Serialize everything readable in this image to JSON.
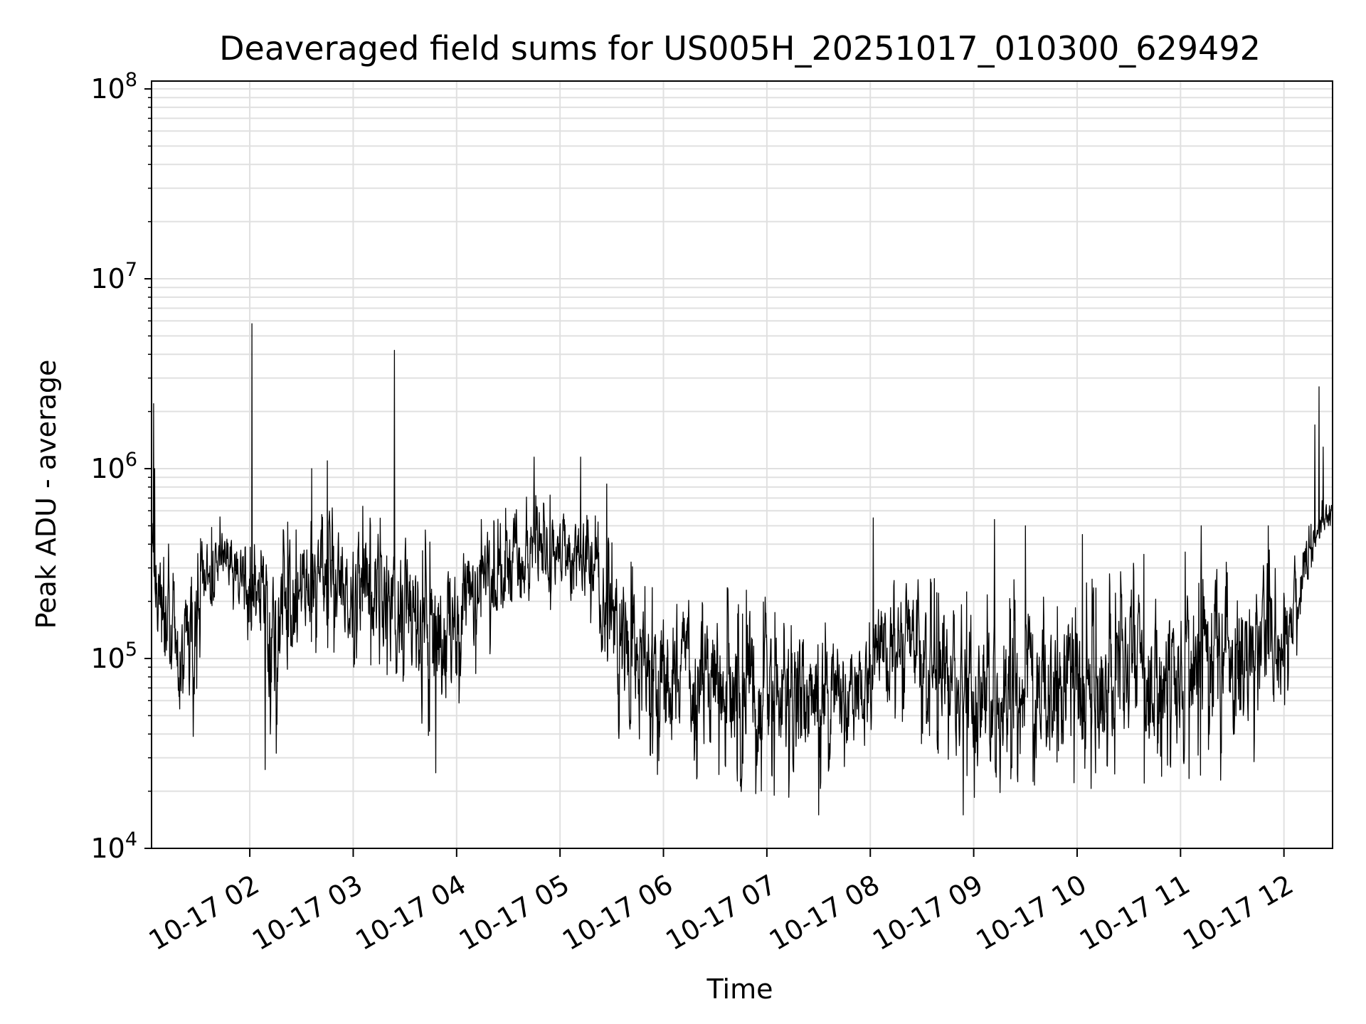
{
  "chart_data": {
    "type": "line",
    "title": "Deaveraged field sums for US005H_20251017_010300_629492",
    "xlabel": "Time",
    "ylabel": "Peak ADU - average",
    "yscale": "log",
    "ylim": [
      10000,
      110000000
    ],
    "xlim_hours": [
      1.05,
      12.47
    ],
    "grid": true,
    "line_color": "#000000",
    "grid_color": "#e0e0e0",
    "xticks": [
      {
        "hour": 2,
        "label": "10-17 02"
      },
      {
        "hour": 3,
        "label": "10-17 03"
      },
      {
        "hour": 4,
        "label": "10-17 04"
      },
      {
        "hour": 5,
        "label": "10-17 05"
      },
      {
        "hour": 6,
        "label": "10-17 06"
      },
      {
        "hour": 7,
        "label": "10-17 07"
      },
      {
        "hour": 8,
        "label": "10-17 08"
      },
      {
        "hour": 9,
        "label": "10-17 09"
      },
      {
        "hour": 10,
        "label": "10-17 10"
      },
      {
        "hour": 11,
        "label": "10-17 11"
      },
      {
        "hour": 12,
        "label": "10-17 12"
      }
    ],
    "yticks": [
      {
        "value": 10000,
        "base": "10",
        "exp": "4"
      },
      {
        "value": 100000,
        "base": "10",
        "exp": "5"
      },
      {
        "value": 1000000,
        "base": "10",
        "exp": "6"
      },
      {
        "value": 10000000,
        "base": "10",
        "exp": "7"
      },
      {
        "value": 100000000,
        "base": "10",
        "exp": "8"
      }
    ],
    "envelope": [
      {
        "hour": 1.05,
        "low": 280000,
        "high": 500000
      },
      {
        "hour": 1.15,
        "low": 40000,
        "high": 900000
      },
      {
        "hour": 1.3,
        "low": 38000,
        "high": 250000
      },
      {
        "hour": 1.45,
        "low": 35000,
        "high": 400000
      },
      {
        "hour": 1.55,
        "low": 150000,
        "high": 450000
      },
      {
        "hour": 1.75,
        "low": 250000,
        "high": 600000
      },
      {
        "hour": 2.0,
        "low": 80000,
        "high": 450000
      },
      {
        "hour": 2.25,
        "low": 30000,
        "high": 450000
      },
      {
        "hour": 2.5,
        "low": 100000,
        "high": 700000
      },
      {
        "hour": 3.0,
        "low": 90000,
        "high": 700000
      },
      {
        "hour": 3.5,
        "low": 60000,
        "high": 550000
      },
      {
        "hour": 3.8,
        "low": 30000,
        "high": 500000
      },
      {
        "hour": 4.3,
        "low": 100000,
        "high": 600000
      },
      {
        "hour": 4.8,
        "low": 180000,
        "high": 800000
      },
      {
        "hour": 5.3,
        "low": 150000,
        "high": 700000
      },
      {
        "hour": 5.5,
        "low": 40000,
        "high": 500000
      },
      {
        "hour": 5.75,
        "low": 22000,
        "high": 350000
      },
      {
        "hour": 6.5,
        "low": 20000,
        "high": 250000
      },
      {
        "hour": 7.5,
        "low": 18000,
        "high": 200000
      },
      {
        "hour": 8.0,
        "low": 25000,
        "high": 180000
      },
      {
        "hour": 8.05,
        "low": 60000,
        "high": 250000
      },
      {
        "hour": 8.4,
        "low": 40000,
        "high": 350000
      },
      {
        "hour": 9.0,
        "low": 18000,
        "high": 250000
      },
      {
        "hour": 9.5,
        "low": 20000,
        "high": 300000
      },
      {
        "hour": 10.0,
        "low": 20000,
        "high": 250000
      },
      {
        "hour": 10.5,
        "low": 22000,
        "high": 350000
      },
      {
        "hour": 11.0,
        "low": 22000,
        "high": 380000
      },
      {
        "hour": 11.5,
        "low": 22000,
        "high": 380000
      },
      {
        "hour": 11.9,
        "low": 35000,
        "high": 400000
      },
      {
        "hour": 12.1,
        "low": 80000,
        "high": 350000
      },
      {
        "hour": 12.25,
        "low": 250000,
        "high": 700000
      },
      {
        "hour": 12.47,
        "low": 500000,
        "high": 800000
      }
    ],
    "spikes": [
      {
        "hour": 1.07,
        "value": 2200000
      },
      {
        "hour": 1.08,
        "value": 1000000
      },
      {
        "hour": 2.02,
        "value": 5800000
      },
      {
        "hour": 3.4,
        "value": 4200000
      },
      {
        "hour": 4.75,
        "value": 1150000
      },
      {
        "hour": 5.2,
        "value": 1150000
      },
      {
        "hour": 5.45,
        "value": 830000
      },
      {
        "hour": 2.6,
        "value": 1000000
      },
      {
        "hour": 2.75,
        "value": 1100000
      },
      {
        "hour": 8.03,
        "value": 550000
      },
      {
        "hour": 9.2,
        "value": 540000
      },
      {
        "hour": 9.5,
        "value": 500000
      },
      {
        "hour": 10.05,
        "value": 450000
      },
      {
        "hour": 11.2,
        "value": 500000
      },
      {
        "hour": 11.85,
        "value": 500000
      },
      {
        "hour": 12.34,
        "value": 2700000
      },
      {
        "hour": 12.3,
        "value": 1700000
      },
      {
        "hour": 12.38,
        "value": 1300000
      },
      {
        "hour": 2.15,
        "value": 26000
      },
      {
        "hour": 3.8,
        "value": 25000
      },
      {
        "hour": 8.9,
        "value": 15000
      },
      {
        "hour": 7.5,
        "value": 15000
      },
      {
        "hour": 10.05,
        "value": 15000
      }
    ]
  }
}
